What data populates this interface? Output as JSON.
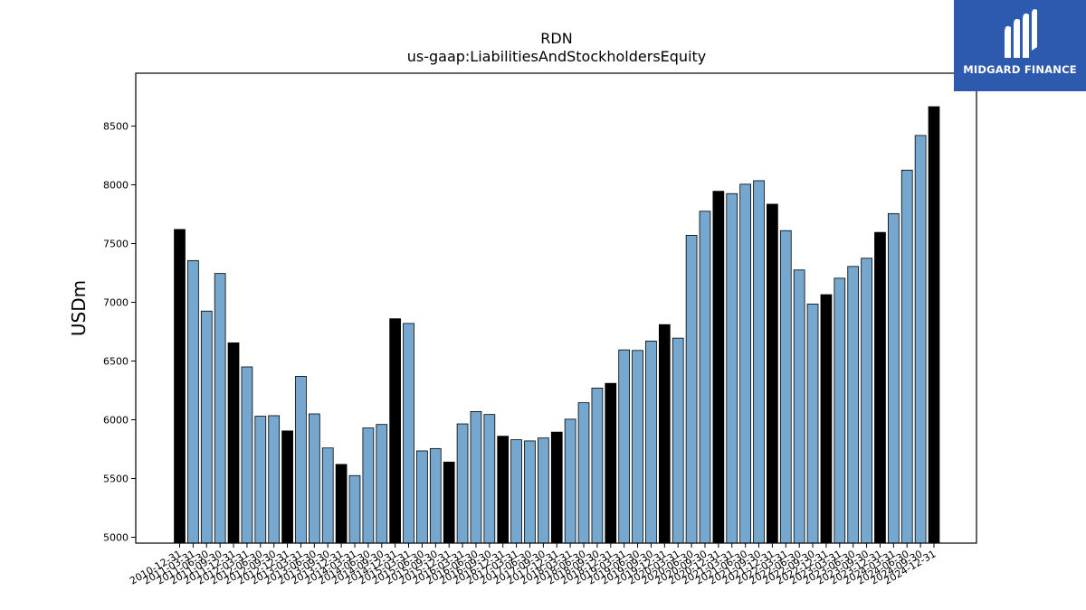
{
  "chart_data": {
    "type": "bar",
    "title": "RDN",
    "subtitle": "us-gaap:LiabilitiesAndStockholdersEquity",
    "xlabel": "",
    "ylabel": "USDm",
    "ylim": [
      4950,
      8950
    ],
    "yticks": [
      5000,
      5500,
      6000,
      6500,
      7000,
      7500,
      8000,
      8500
    ],
    "grid": false,
    "legend": "none",
    "colors": {
      "annual": "#000000",
      "quarterly": "#75a7cf",
      "edge": "#000000"
    },
    "categories": [
      "2010-12-31",
      "2011-03-31",
      "2011-06-30",
      "2011-09-30",
      "2011-12-31",
      "2012-03-31",
      "2012-06-30",
      "2012-09-30",
      "2012-12-31",
      "2013-03-31",
      "2013-06-30",
      "2013-09-30",
      "2013-12-31",
      "2014-03-31",
      "2014-06-30",
      "2014-09-30",
      "2014-12-31",
      "2015-03-31",
      "2015-06-30",
      "2015-09-30",
      "2015-12-31",
      "2016-03-31",
      "2016-06-30",
      "2016-09-30",
      "2016-12-31",
      "2017-03-31",
      "2017-06-30",
      "2017-09-30",
      "2017-12-31",
      "2018-03-31",
      "2018-06-30",
      "2018-09-30",
      "2018-12-31",
      "2019-03-31",
      "2019-06-30",
      "2019-09-30",
      "2019-12-31",
      "2020-03-31",
      "2020-06-30",
      "2020-09-30",
      "2020-12-31",
      "2021-03-31",
      "2021-06-30",
      "2021-09-30",
      "2021-12-31",
      "2022-03-31",
      "2022-06-30",
      "2022-09-30",
      "2022-12-31",
      "2023-03-31",
      "2023-06-30",
      "2023-09-30",
      "2023-12-31",
      "2024-03-31",
      "2024-06-30",
      "2024-09-30",
      "2024-12-31"
    ],
    "values": [
      7620,
      7355,
      6925,
      7245,
      6655,
      6450,
      6030,
      6035,
      5905,
      6370,
      6050,
      5760,
      5620,
      5525,
      5930,
      5960,
      6860,
      6820,
      5735,
      5755,
      5640,
      5965,
      6070,
      6045,
      5860,
      5830,
      5820,
      5845,
      5895,
      6005,
      6145,
      6270,
      6310,
      6595,
      6590,
      6670,
      6810,
      6695,
      7570,
      7775,
      7945,
      7925,
      8005,
      8035,
      7835,
      7610,
      7275,
      6985,
      7065,
      7205,
      7305,
      7375,
      7595,
      7755,
      8125,
      8420,
      8665
    ],
    "annual_flags": [
      true,
      false,
      false,
      false,
      true,
      false,
      false,
      false,
      true,
      false,
      false,
      false,
      true,
      false,
      false,
      false,
      true,
      false,
      false,
      false,
      true,
      false,
      false,
      false,
      true,
      false,
      false,
      false,
      true,
      false,
      false,
      false,
      true,
      false,
      false,
      false,
      true,
      false,
      false,
      false,
      true,
      false,
      false,
      false,
      true,
      false,
      false,
      false,
      true,
      false,
      false,
      false,
      true,
      false,
      false,
      false,
      true
    ]
  },
  "logo": {
    "icon": "midgard-m-logo-icon",
    "name": "MIDGARD FINANCE",
    "background": "#2d5aae"
  }
}
